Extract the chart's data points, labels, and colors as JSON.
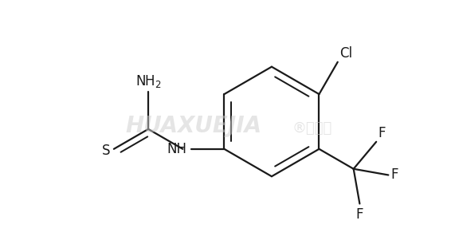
{
  "background_color": "#ffffff",
  "line_color": "#1a1a1a",
  "line_width": 1.6,
  "font_size_label": 12,
  "figsize": [
    5.71,
    3.16
  ],
  "dpi": 100,
  "xlim": [
    -2.6,
    2.2
  ],
  "ylim": [
    -1.4,
    1.4
  ]
}
